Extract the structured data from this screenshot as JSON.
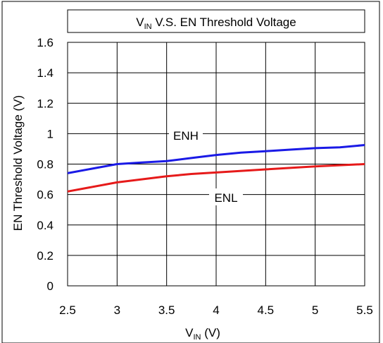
{
  "chart_data": {
    "type": "line",
    "title": {
      "main": "V",
      "sub": "IN",
      "rest": " V.S. EN Threshold Voltage"
    },
    "xlabel": {
      "main": "V",
      "sub": "IN",
      "rest": " (V)"
    },
    "ylabel": "EN Threshold Voltage (V)",
    "xlim": [
      2.5,
      5.5
    ],
    "ylim": [
      0,
      1.6
    ],
    "x_ticks": [
      "2.5",
      "3",
      "3.5",
      "4",
      "4.5",
      "5",
      "5.5"
    ],
    "y_ticks": [
      "0",
      "0.2",
      "0.4",
      "0.6",
      "0.8",
      "1",
      "1.2",
      "1.4",
      "1.6"
    ],
    "grid": true,
    "series": [
      {
        "name": "ENH",
        "color": "#1a1ae6",
        "points": [
          [
            2.5,
            0.74
          ],
          [
            3.0,
            0.8
          ],
          [
            3.25,
            0.81
          ],
          [
            3.5,
            0.82
          ],
          [
            3.75,
            0.84
          ],
          [
            4.0,
            0.86
          ],
          [
            4.25,
            0.875
          ],
          [
            4.5,
            0.885
          ],
          [
            4.75,
            0.895
          ],
          [
            5.0,
            0.905
          ],
          [
            5.25,
            0.91
          ],
          [
            5.5,
            0.925
          ]
        ]
      },
      {
        "name": "ENL",
        "color": "#e61a1a",
        "points": [
          [
            2.5,
            0.62
          ],
          [
            3.0,
            0.68
          ],
          [
            3.5,
            0.72
          ],
          [
            3.75,
            0.735
          ],
          [
            4.0,
            0.745
          ],
          [
            4.5,
            0.765
          ],
          [
            5.0,
            0.785
          ],
          [
            5.5,
            0.8
          ]
        ]
      }
    ]
  }
}
